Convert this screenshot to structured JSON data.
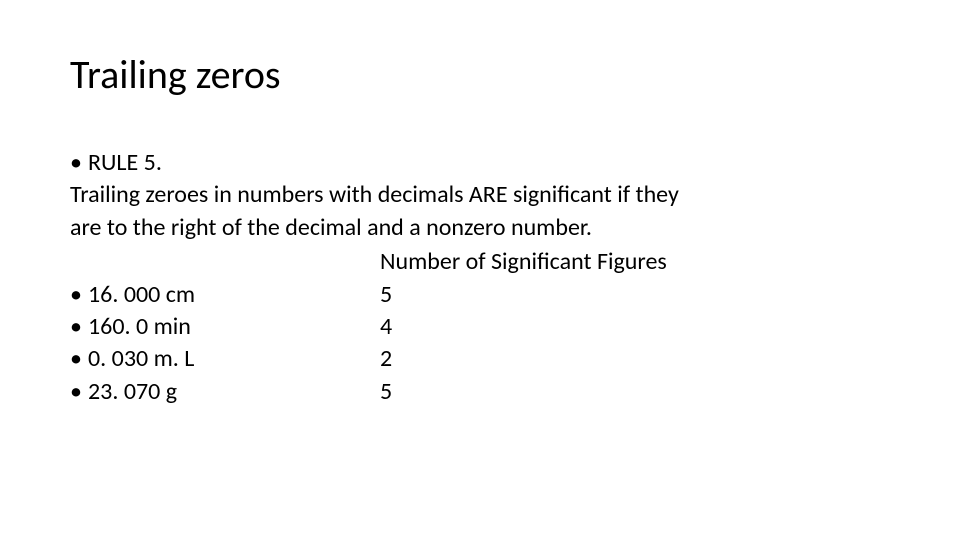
{
  "title": "Trailing zeros",
  "rule_label": "RULE 5.",
  "rule_text_line1": "Trailing zeroes in numbers with decimals ARE significant if they",
  "rule_text_line2": "are to the right of the decimal and a nonzero number.",
  "count_header": "Number of Significant Figures",
  "bullet_char": "•",
  "examples": [
    {
      "value": "16. 000 cm",
      "count": "5"
    },
    {
      "value": "160. 0 min",
      "count": "4"
    },
    {
      "value": "0. 030 m. L",
      "count": "2"
    },
    {
      "value": "23. 070 g",
      "count": "5"
    }
  ],
  "colors": {
    "text": "#000000",
    "background": "#ffffff"
  },
  "font": {
    "title_size_pt": 40,
    "body_size_pt": 24,
    "family": "Calibri"
  }
}
